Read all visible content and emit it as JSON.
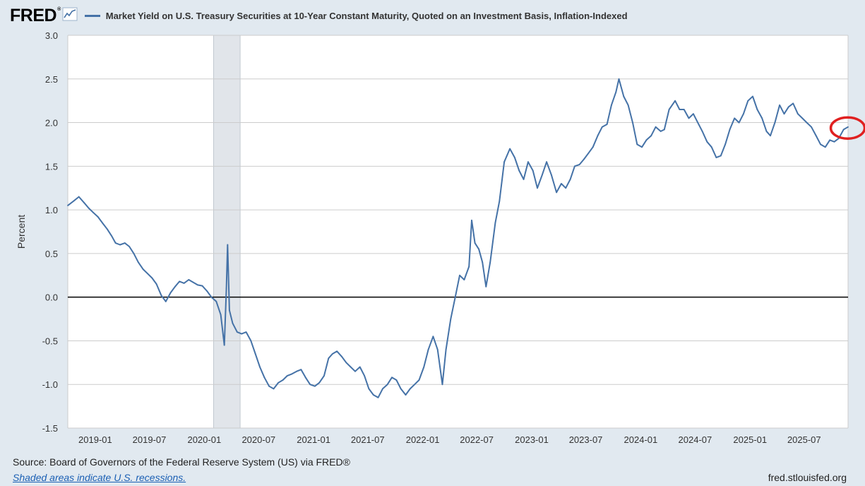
{
  "header": {
    "logo_text": "FRED",
    "logo_reg": "®"
  },
  "footer": {
    "source": "Source: Board of Governors of the Federal Reserve System (US) via FRED®",
    "recession_note": "Shaded areas indicate U.S. recessions.",
    "url": "fred.stlouisfed.org"
  },
  "colors": {
    "series": "#4572a7",
    "background": "#e1e9f0",
    "plot_background": "#ffffff",
    "recession": "#e1e5ea",
    "highlight_circle": "#e02020"
  },
  "chart_data": {
    "type": "line",
    "title": "Market Yield on U.S. Treasury Securities at 10-Year Constant Maturity, Quoted on an Investment Basis, Inflation-Indexed",
    "xlabel": "",
    "ylabel": "Percent",
    "ylim": [
      -1.5,
      3.0
    ],
    "xlim": [
      "2018-10-01",
      "2025-11-25"
    ],
    "yticks": [
      "3.0",
      "2.5",
      "2.0",
      "1.5",
      "1.0",
      "0.5",
      "0.0",
      "-0.5",
      "-1.0",
      "-1.5"
    ],
    "xticks": [
      "2019-01",
      "2019-07",
      "2020-01",
      "2020-07",
      "2021-01",
      "2021-07",
      "2022-01",
      "2022-07",
      "2023-01",
      "2023-07",
      "2024-01",
      "2024-07",
      "2025-01",
      "2025-07"
    ],
    "grid": true,
    "legend": "top-left",
    "recessions": [
      [
        "2020-02-01",
        "2020-04-30"
      ]
    ],
    "highlight": {
      "x": "2025-11-05",
      "y": 1.93
    },
    "series": [
      {
        "name": "Market Yield on U.S. Treasury Securities at 10-Year Constant Maturity, Quoted on an Investment Basis, Inflation-Indexed",
        "points": [
          [
            "2018-10-01",
            1.05
          ],
          [
            "2018-10-20",
            1.1
          ],
          [
            "2018-11-07",
            1.15
          ],
          [
            "2018-11-25",
            1.08
          ],
          [
            "2018-12-10",
            1.02
          ],
          [
            "2018-12-25",
            0.97
          ],
          [
            "2019-01-10",
            0.92
          ],
          [
            "2019-01-25",
            0.85
          ],
          [
            "2019-02-10",
            0.78
          ],
          [
            "2019-02-25",
            0.7
          ],
          [
            "2019-03-10",
            0.62
          ],
          [
            "2019-03-25",
            0.6
          ],
          [
            "2019-04-10",
            0.62
          ],
          [
            "2019-04-25",
            0.58
          ],
          [
            "2019-05-10",
            0.5
          ],
          [
            "2019-05-25",
            0.4
          ],
          [
            "2019-06-10",
            0.32
          ],
          [
            "2019-06-25",
            0.27
          ],
          [
            "2019-07-10",
            0.22
          ],
          [
            "2019-07-25",
            0.15
          ],
          [
            "2019-08-10",
            0.02
          ],
          [
            "2019-08-25",
            -0.05
          ],
          [
            "2019-09-10",
            0.05
          ],
          [
            "2019-09-25",
            0.12
          ],
          [
            "2019-10-10",
            0.18
          ],
          [
            "2019-10-25",
            0.16
          ],
          [
            "2019-11-10",
            0.2
          ],
          [
            "2019-11-25",
            0.17
          ],
          [
            "2019-12-10",
            0.14
          ],
          [
            "2019-12-25",
            0.13
          ],
          [
            "2020-01-10",
            0.07
          ],
          [
            "2020-01-25",
            0.0
          ],
          [
            "2020-02-10",
            -0.05
          ],
          [
            "2020-02-25",
            -0.2
          ],
          [
            "2020-03-08",
            -0.55
          ],
          [
            "2020-03-15",
            0.1
          ],
          [
            "2020-03-19",
            0.6
          ],
          [
            "2020-03-25",
            -0.15
          ],
          [
            "2020-04-05",
            -0.3
          ],
          [
            "2020-04-20",
            -0.4
          ],
          [
            "2020-05-05",
            -0.42
          ],
          [
            "2020-05-20",
            -0.4
          ],
          [
            "2020-06-05",
            -0.5
          ],
          [
            "2020-06-20",
            -0.65
          ],
          [
            "2020-07-05",
            -0.8
          ],
          [
            "2020-07-20",
            -0.92
          ],
          [
            "2020-08-05",
            -1.02
          ],
          [
            "2020-08-20",
            -1.05
          ],
          [
            "2020-09-05",
            -0.98
          ],
          [
            "2020-09-20",
            -0.95
          ],
          [
            "2020-10-05",
            -0.9
          ],
          [
            "2020-10-20",
            -0.88
          ],
          [
            "2020-11-05",
            -0.85
          ],
          [
            "2020-11-20",
            -0.83
          ],
          [
            "2020-12-05",
            -0.92
          ],
          [
            "2020-12-20",
            -1.0
          ],
          [
            "2021-01-05",
            -1.02
          ],
          [
            "2021-01-20",
            -0.98
          ],
          [
            "2021-02-05",
            -0.9
          ],
          [
            "2021-02-20",
            -0.7
          ],
          [
            "2021-03-05",
            -0.65
          ],
          [
            "2021-03-20",
            -0.62
          ],
          [
            "2021-04-05",
            -0.68
          ],
          [
            "2021-04-20",
            -0.75
          ],
          [
            "2021-05-05",
            -0.8
          ],
          [
            "2021-05-20",
            -0.85
          ],
          [
            "2021-06-05",
            -0.8
          ],
          [
            "2021-06-20",
            -0.9
          ],
          [
            "2021-07-05",
            -1.05
          ],
          [
            "2021-07-20",
            -1.12
          ],
          [
            "2021-08-05",
            -1.15
          ],
          [
            "2021-08-20",
            -1.05
          ],
          [
            "2021-09-05",
            -1.0
          ],
          [
            "2021-09-20",
            -0.92
          ],
          [
            "2021-10-05",
            -0.95
          ],
          [
            "2021-10-20",
            -1.05
          ],
          [
            "2021-11-05",
            -1.12
          ],
          [
            "2021-11-20",
            -1.05
          ],
          [
            "2021-12-05",
            -1.0
          ],
          [
            "2021-12-20",
            -0.95
          ],
          [
            "2022-01-05",
            -0.8
          ],
          [
            "2022-01-20",
            -0.6
          ],
          [
            "2022-02-05",
            -0.45
          ],
          [
            "2022-02-20",
            -0.6
          ],
          [
            "2022-03-08",
            -1.0
          ],
          [
            "2022-03-20",
            -0.6
          ],
          [
            "2022-04-05",
            -0.25
          ],
          [
            "2022-04-20",
            0.0
          ],
          [
            "2022-05-05",
            0.25
          ],
          [
            "2022-05-20",
            0.2
          ],
          [
            "2022-06-05",
            0.35
          ],
          [
            "2022-06-14",
            0.88
          ],
          [
            "2022-06-25",
            0.62
          ],
          [
            "2022-07-08",
            0.55
          ],
          [
            "2022-07-20",
            0.4
          ],
          [
            "2022-08-01",
            0.12
          ],
          [
            "2022-08-15",
            0.4
          ],
          [
            "2022-09-01",
            0.85
          ],
          [
            "2022-09-15",
            1.1
          ],
          [
            "2022-10-01",
            1.55
          ],
          [
            "2022-10-20",
            1.7
          ],
          [
            "2022-11-05",
            1.6
          ],
          [
            "2022-11-20",
            1.45
          ],
          [
            "2022-12-05",
            1.35
          ],
          [
            "2022-12-20",
            1.55
          ],
          [
            "2023-01-05",
            1.45
          ],
          [
            "2023-01-20",
            1.25
          ],
          [
            "2023-02-05",
            1.4
          ],
          [
            "2023-02-20",
            1.55
          ],
          [
            "2023-03-08",
            1.4
          ],
          [
            "2023-03-25",
            1.2
          ],
          [
            "2023-04-10",
            1.3
          ],
          [
            "2023-04-25",
            1.25
          ],
          [
            "2023-05-10",
            1.35
          ],
          [
            "2023-05-25",
            1.5
          ],
          [
            "2023-06-10",
            1.52
          ],
          [
            "2023-06-25",
            1.58
          ],
          [
            "2023-07-10",
            1.65
          ],
          [
            "2023-07-25",
            1.72
          ],
          [
            "2023-08-10",
            1.85
          ],
          [
            "2023-08-25",
            1.95
          ],
          [
            "2023-09-10",
            1.98
          ],
          [
            "2023-09-25",
            2.2
          ],
          [
            "2023-10-10",
            2.35
          ],
          [
            "2023-10-20",
            2.5
          ],
          [
            "2023-11-05",
            2.3
          ],
          [
            "2023-11-20",
            2.2
          ],
          [
            "2023-12-05",
            2.0
          ],
          [
            "2023-12-20",
            1.75
          ],
          [
            "2024-01-05",
            1.72
          ],
          [
            "2024-01-20",
            1.8
          ],
          [
            "2024-02-05",
            1.85
          ],
          [
            "2024-02-20",
            1.95
          ],
          [
            "2024-03-08",
            1.9
          ],
          [
            "2024-03-20",
            1.92
          ],
          [
            "2024-04-05",
            2.15
          ],
          [
            "2024-04-25",
            2.25
          ],
          [
            "2024-05-10",
            2.15
          ],
          [
            "2024-05-25",
            2.15
          ],
          [
            "2024-06-10",
            2.05
          ],
          [
            "2024-06-25",
            2.1
          ],
          [
            "2024-07-10",
            2.0
          ],
          [
            "2024-07-25",
            1.9
          ],
          [
            "2024-08-10",
            1.78
          ],
          [
            "2024-08-25",
            1.72
          ],
          [
            "2024-09-10",
            1.6
          ],
          [
            "2024-09-25",
            1.62
          ],
          [
            "2024-10-10",
            1.75
          ],
          [
            "2024-10-25",
            1.92
          ],
          [
            "2024-11-10",
            2.05
          ],
          [
            "2024-11-25",
            2.0
          ],
          [
            "2024-12-10",
            2.1
          ],
          [
            "2024-12-25",
            2.25
          ],
          [
            "2025-01-10",
            2.3
          ],
          [
            "2025-01-25",
            2.15
          ],
          [
            "2025-02-10",
            2.05
          ],
          [
            "2025-02-25",
            1.9
          ],
          [
            "2025-03-10",
            1.85
          ],
          [
            "2025-03-25",
            2.0
          ],
          [
            "2025-04-10",
            2.2
          ],
          [
            "2025-04-25",
            2.1
          ],
          [
            "2025-05-10",
            2.18
          ],
          [
            "2025-05-25",
            2.22
          ],
          [
            "2025-06-10",
            2.1
          ],
          [
            "2025-06-25",
            2.05
          ],
          [
            "2025-07-10",
            2.0
          ],
          [
            "2025-07-25",
            1.95
          ],
          [
            "2025-08-10",
            1.85
          ],
          [
            "2025-08-25",
            1.75
          ],
          [
            "2025-09-10",
            1.72
          ],
          [
            "2025-09-25",
            1.8
          ],
          [
            "2025-10-10",
            1.78
          ],
          [
            "2025-10-25",
            1.82
          ],
          [
            "2025-11-10",
            1.92
          ],
          [
            "2025-11-25",
            1.95
          ]
        ]
      }
    ]
  }
}
